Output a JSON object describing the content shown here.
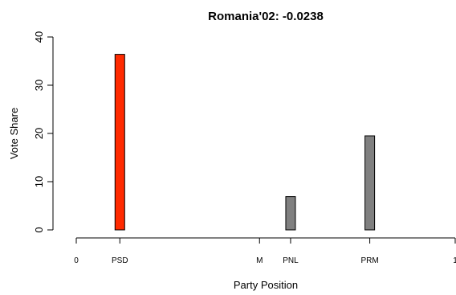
{
  "chart_data": {
    "type": "bar",
    "title": "Romania'02: -0.0238",
    "xlabel": "Party Position",
    "ylabel": "Vote Share",
    "xlim": [
      0,
      1
    ],
    "ylim": [
      0,
      40
    ],
    "y_ticks": [
      0,
      10,
      20,
      30,
      40
    ],
    "x_ticks": [
      {
        "label": "0",
        "x": 0
      },
      {
        "label": "PSD",
        "x": 0.115
      },
      {
        "label": "M",
        "x": 0.4836
      },
      {
        "label": "PNL",
        "x": 0.5656
      },
      {
        "label": "PRM",
        "x": 0.7746
      },
      {
        "label": "1",
        "x": 1
      }
    ],
    "bars": [
      {
        "party": "PSD",
        "x": 0.115,
        "value": 36.4,
        "color": "#ff2a00"
      },
      {
        "party": "PNL",
        "x": 0.5656,
        "value": 6.9,
        "color": "#808080"
      },
      {
        "party": "PRM",
        "x": 0.7746,
        "value": 19.5,
        "color": "#808080"
      }
    ],
    "grid": false,
    "legend": "none"
  }
}
